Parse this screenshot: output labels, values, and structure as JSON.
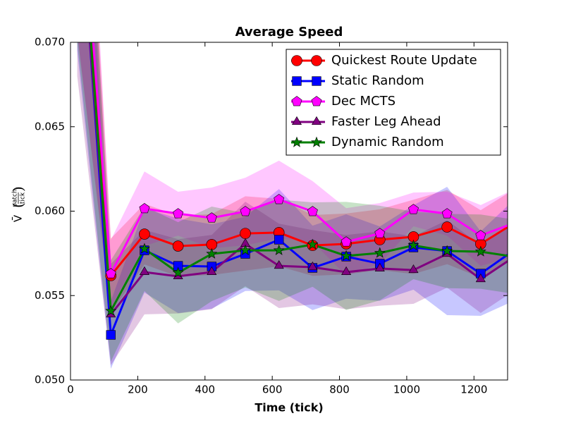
{
  "chart_data": {
    "type": "line",
    "title": "Average Speed",
    "xlabel": "Time (tick)",
    "ylabel": {
      "symbol": "V̄",
      "numerator": "patch",
      "denominator": "tick"
    },
    "x": [
      20,
      120,
      220,
      320,
      420,
      520,
      620,
      720,
      820,
      920,
      1020,
      1120,
      1220,
      1320
    ],
    "series": [
      {
        "name": "Quickest Route Update",
        "color": "#ff0000",
        "marker": "circle",
        "values": [
          0.0815,
          0.05618,
          0.05864,
          0.05793,
          0.05802,
          0.05868,
          0.05873,
          0.05797,
          0.05806,
          0.05831,
          0.05848,
          0.05906,
          0.05806,
          0.0593
        ],
        "errors": [
          0.011,
          0.0022,
          0.0018,
          0.0018,
          0.0018,
          0.0022,
          0.002,
          0.0018,
          0.0018,
          0.0018,
          0.0022,
          0.0022,
          0.002,
          0.002
        ]
      },
      {
        "name": "Static Random",
        "color": "#0000ff",
        "marker": "square",
        "values": [
          0.0805,
          0.05267,
          0.05768,
          0.05676,
          0.05672,
          0.05747,
          0.05831,
          0.05664,
          0.05731,
          0.05689,
          0.05785,
          0.05764,
          0.0563,
          0.0577
        ],
        "errors": [
          0.011,
          0.002,
          0.0025,
          0.0028,
          0.0025,
          0.0022,
          0.003,
          0.0025,
          0.0025,
          0.0022,
          0.0025,
          0.0038,
          0.0025,
          0.003
        ]
      },
      {
        "name": "Dec MCTS",
        "color": "#ff00ff",
        "marker": "pentagon",
        "values": [
          0.0825,
          0.0563,
          0.06015,
          0.05985,
          0.0596,
          0.05998,
          0.06069,
          0.05998,
          0.05818,
          0.05868,
          0.0601,
          0.05985,
          0.05856,
          0.0593
        ],
        "errors": [
          0.012,
          0.002,
          0.0022,
          0.0013,
          0.0018,
          0.002,
          0.0023,
          0.0018,
          0.002,
          0.0018,
          0.001,
          0.0013,
          0.0018,
          0.002
        ]
      },
      {
        "name": "Faster Leg Ahead",
        "color": "#800080",
        "marker": "triangle",
        "values": [
          0.08,
          0.05388,
          0.05639,
          0.05614,
          0.05639,
          0.05806,
          0.05676,
          0.05668,
          0.05639,
          0.0566,
          0.05651,
          0.05747,
          0.05597,
          0.0573
        ],
        "errors": [
          0.012,
          0.003,
          0.0025,
          0.0022,
          0.0022,
          0.0025,
          0.0025,
          0.0022,
          0.0022,
          0.0022,
          0.002,
          0.002,
          0.002,
          0.002
        ]
      },
      {
        "name": "Dynamic Random",
        "color": "#008000",
        "marker": "star",
        "values": [
          0.081,
          0.05409,
          0.05777,
          0.05635,
          0.05747,
          0.05768,
          0.05768,
          0.05802,
          0.05735,
          0.05752,
          0.05797,
          0.05764,
          0.0576,
          0.0573
        ],
        "errors": [
          0.011,
          0.003,
          0.0025,
          0.003,
          0.0028,
          0.0022,
          0.003,
          0.0025,
          0.0032,
          0.0028,
          0.002,
          0.0022,
          0.0022,
          0.0022
        ]
      }
    ],
    "xlim": [
      0,
      1300
    ],
    "xticks": [
      0,
      200,
      400,
      600,
      800,
      1000,
      1200
    ],
    "ylim": [
      0.05,
      0.07
    ],
    "yticks": [
      {
        "value": 0.05,
        "label": "0.050"
      },
      {
        "value": 0.055,
        "label": "0.055"
      },
      {
        "value": 0.06,
        "label": "0.060"
      },
      {
        "value": 0.065,
        "label": "0.065"
      },
      {
        "value": 0.07,
        "label": "0.070"
      }
    ],
    "legend": "upper right",
    "grid": false
  }
}
